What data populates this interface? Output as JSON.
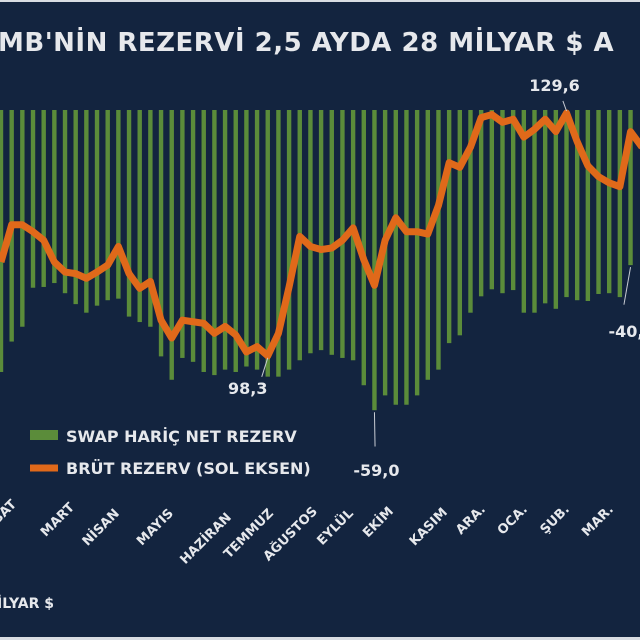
{
  "title": "MB'NİN REZERVİ 2,5 AYDA 28 MİLYAR $ A",
  "unit_label": "İLYAR $",
  "colors": {
    "background": "#13243f",
    "bars": "#5b8c3a",
    "line": "#e0691a",
    "text": "#e6e8ec"
  },
  "chart_data": {
    "type": "bar+line",
    "title": "MB'NİN REZERVİ 2,5 AYDA 28 MİLYAR $ A",
    "legend": {
      "placement": "middle-left",
      "entries": [
        "SWAP HARİÇ NET REZERV",
        "BRÜT REZERV (SOL EKSEN)"
      ]
    },
    "month_labels": [
      "BAT",
      "MART",
      "NİSAN",
      "MAYIS",
      "HAZİRAN",
      "TEMMUZ",
      "AĞUSTOS",
      "EYLÜL",
      "EKİM",
      "KASIM",
      "ARA.",
      "OCA.",
      "ŞUB.",
      "MAR."
    ],
    "annotations": [
      {
        "series": "line",
        "index": 25,
        "text": "98,3"
      },
      {
        "series": "line",
        "index": 53,
        "text": "129,6"
      },
      {
        "series": "bars",
        "index": 35,
        "text": "-59,0"
      },
      {
        "series": "bars",
        "index": 59,
        "text": "-40,"
      }
    ],
    "grid": false,
    "series": [
      {
        "name": "SWAP HARİÇ NET REZERV",
        "type": "bar",
        "values": [
          -54.1,
          -50.2,
          -48.3,
          -43.3,
          -43.2,
          -42.7,
          -44.0,
          -45.4,
          -46.5,
          -45.6,
          -44.9,
          -44.7,
          -47.0,
          -47.7,
          -48.3,
          -52.1,
          -55.1,
          -52.3,
          -52.8,
          -54.1,
          -54.5,
          -53.8,
          -54.1,
          -53.4,
          -53.8,
          -54.7,
          -54.7,
          -53.8,
          -52.6,
          -51.7,
          -51.3,
          -51.9,
          -52.3,
          -52.6,
          -55.8,
          -59.0,
          -57.1,
          -58.3,
          -58.3,
          -57.1,
          -55.1,
          -53.8,
          -50.4,
          -49.4,
          -46.5,
          -44.4,
          -43.5,
          -44.0,
          -43.6,
          -46.5,
          -46.5,
          -45.3,
          -46.0,
          -44.5,
          -44.9,
          -45.0,
          -44.1,
          -44.0,
          -44.5,
          -40.4
        ]
      },
      {
        "name": "BRÜT REZERV (SOL EKSEN)",
        "type": "line",
        "values": [
          110.4,
          115.2,
          115.2,
          114.3,
          113.2,
          110.4,
          109.1,
          108.9,
          108.3,
          109.1,
          110.0,
          112.4,
          108.9,
          107.0,
          107.9,
          102.9,
          100.6,
          102.9,
          102.7,
          102.5,
          101.2,
          102.1,
          101.0,
          98.8,
          99.5,
          98.3,
          101.2,
          107.2,
          113.7,
          112.4,
          112.0,
          112.2,
          113.2,
          114.8,
          110.7,
          107.4,
          113.2,
          116.1,
          114.3,
          114.3,
          114.0,
          117.7,
          123.2,
          122.6,
          125.2,
          129.0,
          129.4,
          128.4,
          128.8,
          126.5,
          127.5,
          128.8,
          127.2,
          129.6,
          125.9,
          122.8,
          121.4,
          120.6,
          120.1,
          127.2
        ]
      }
    ]
  }
}
